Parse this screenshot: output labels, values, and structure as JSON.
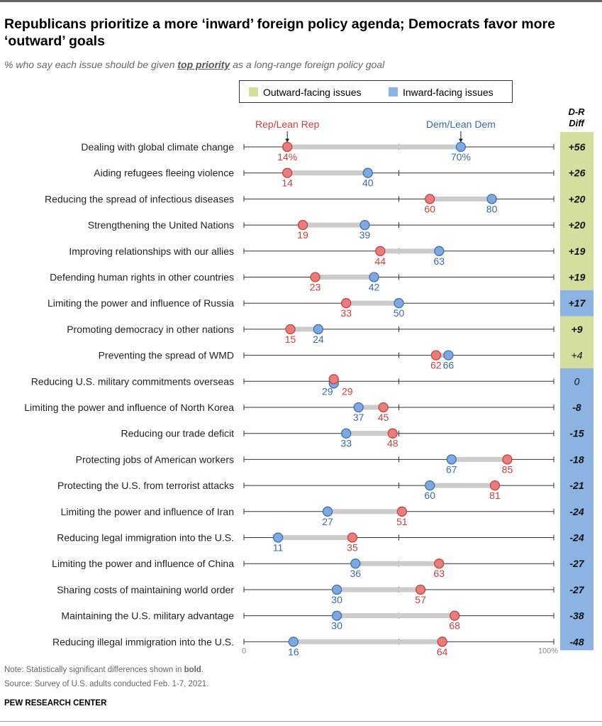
{
  "header": {
    "title": "Republicans prioritize a more ‘inward’ foreign policy agenda; Democrats favor more ‘outward’ goals",
    "subtitle_pre": "% who say each issue should be given ",
    "subtitle_emph": "top priority",
    "subtitle_post": " as a long-range foreign policy goal"
  },
  "legend": {
    "outward_label": "Outward-facing issues",
    "inward_label": "Inward-facing issues"
  },
  "diff_header": {
    "line1": "D-R",
    "line2": "Diff"
  },
  "series_labels": {
    "rep": "Rep/Lean Rep",
    "dem": "Dem/Lean Dem"
  },
  "axis": {
    "min_label": "0",
    "max_label": "100%"
  },
  "colors": {
    "rep": "#e57e7e",
    "rep_stroke": "#c9403f",
    "rep_text": "#c9403f",
    "dem": "#7fa9de",
    "dem_stroke": "#3f6fb0",
    "dem_text": "#3a6aa8",
    "outward": "#d4de9e",
    "inward": "#8db3e2",
    "bar": "#cccccc"
  },
  "chart_data": {
    "type": "dot_plot",
    "xlim": [
      0,
      100
    ],
    "unit": "%",
    "series": [
      {
        "name": "Rep/Lean Rep",
        "values": [
          14,
          14,
          60,
          19,
          44,
          23,
          33,
          15,
          62,
          29,
          45,
          48,
          85,
          81,
          51,
          35,
          63,
          57,
          68,
          64
        ]
      },
      {
        "name": "Dem/Lean Dem",
        "values": [
          70,
          40,
          80,
          39,
          63,
          42,
          50,
          24,
          66,
          29,
          37,
          33,
          67,
          60,
          27,
          11,
          36,
          30,
          30,
          16
        ]
      }
    ],
    "rows": [
      {
        "label": "Dealing with global climate change",
        "rep": 14,
        "dem": 70,
        "rep_text": "14%",
        "dem_text": "70%",
        "diff": "+56",
        "category": "outward",
        "bold": true
      },
      {
        "label": "Aiding refugees fleeing violence",
        "rep": 14,
        "dem": 40,
        "rep_text": "14",
        "dem_text": "40",
        "diff": "+26",
        "category": "outward",
        "bold": true
      },
      {
        "label": "Reducing the spread of infectious diseases",
        "rep": 60,
        "dem": 80,
        "rep_text": "60",
        "dem_text": "80",
        "diff": "+20",
        "category": "outward",
        "bold": true
      },
      {
        "label": "Strengthening the United Nations",
        "rep": 19,
        "dem": 39,
        "rep_text": "19",
        "dem_text": "39",
        "diff": "+20",
        "category": "outward",
        "bold": true
      },
      {
        "label": "Improving relationships with our allies",
        "rep": 44,
        "dem": 63,
        "rep_text": "44",
        "dem_text": "63",
        "diff": "+19",
        "category": "outward",
        "bold": true
      },
      {
        "label": "Defending human rights in other countries",
        "rep": 23,
        "dem": 42,
        "rep_text": "23",
        "dem_text": "42",
        "diff": "+19",
        "category": "outward",
        "bold": true
      },
      {
        "label": "Limiting the power and influence of Russia",
        "rep": 33,
        "dem": 50,
        "rep_text": "33",
        "dem_text": "50",
        "diff": "+17",
        "category": "inward",
        "bold": true
      },
      {
        "label": "Promoting democracy in other nations",
        "rep": 15,
        "dem": 24,
        "rep_text": "15",
        "dem_text": "24",
        "diff": "+9",
        "category": "outward",
        "bold": true
      },
      {
        "label": "Preventing the spread of WMD",
        "rep": 62,
        "dem": 66,
        "rep_text": "62",
        "dem_text": "66",
        "diff": "+4",
        "category": "outward",
        "bold": false
      },
      {
        "label": "Reducing U.S. military commitments overseas",
        "rep": 29,
        "dem": 29,
        "rep_text": "29",
        "dem_text": "29",
        "diff": "0",
        "category": "inward",
        "bold": false
      },
      {
        "label": "Limiting the power and influence of North Korea",
        "rep": 45,
        "dem": 37,
        "rep_text": "45",
        "dem_text": "37",
        "diff": "-8",
        "category": "inward",
        "bold": true
      },
      {
        "label": "Reducing our trade deficit",
        "rep": 48,
        "dem": 33,
        "rep_text": "48",
        "dem_text": "33",
        "diff": "-15",
        "category": "inward",
        "bold": true
      },
      {
        "label": "Protecting jobs of American workers",
        "rep": 85,
        "dem": 67,
        "rep_text": "85",
        "dem_text": "67",
        "diff": "-18",
        "category": "inward",
        "bold": true
      },
      {
        "label": "Protecting the U.S. from terrorist attacks",
        "rep": 81,
        "dem": 60,
        "rep_text": "81",
        "dem_text": "60",
        "diff": "-21",
        "category": "inward",
        "bold": true
      },
      {
        "label": "Limiting the power and influence of Iran",
        "rep": 51,
        "dem": 27,
        "rep_text": "51",
        "dem_text": "27",
        "diff": "-24",
        "category": "inward",
        "bold": true
      },
      {
        "label": "Reducing legal immigration into the U.S.",
        "rep": 35,
        "dem": 11,
        "rep_text": "35",
        "dem_text": "11",
        "diff": "-24",
        "category": "inward",
        "bold": true
      },
      {
        "label": "Limiting the power and influence of China",
        "rep": 63,
        "dem": 36,
        "rep_text": "63",
        "dem_text": "36",
        "diff": "-27",
        "category": "inward",
        "bold": true
      },
      {
        "label": "Sharing costs of maintaining world order",
        "rep": 57,
        "dem": 30,
        "rep_text": "57",
        "dem_text": "30",
        "diff": "-27",
        "category": "inward",
        "bold": true
      },
      {
        "label": "Maintaining the U.S. military advantage",
        "rep": 68,
        "dem": 30,
        "rep_text": "68",
        "dem_text": "30",
        "diff": "-38",
        "category": "inward",
        "bold": true
      },
      {
        "label": "Reducing illegal immigration into the U.S.",
        "rep": 64,
        "dem": 16,
        "rep_text": "64",
        "dem_text": "16",
        "diff": "-48",
        "category": "inward",
        "bold": true
      }
    ]
  },
  "notes": {
    "note_pre": "Note: Statistically significant differences shown in ",
    "note_bold": "bold",
    "note_post": ".",
    "source": "Source: Survey of U.S. adults conducted Feb. 1-7, 2021.",
    "brand": "PEW RESEARCH CENTER"
  }
}
